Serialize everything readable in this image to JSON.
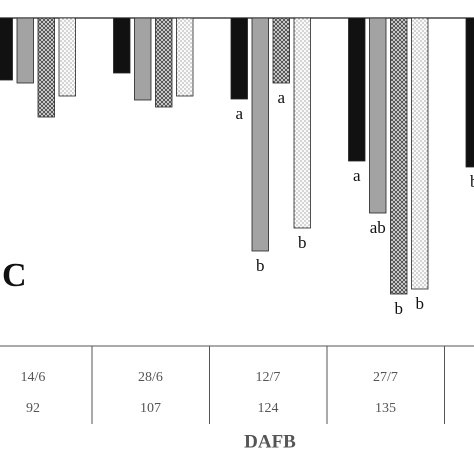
{
  "chart_data": {
    "type": "bar",
    "panel": "C",
    "x_label": "DAFB",
    "categories": [
      "14/6",
      "28/6",
      "12/7",
      "27/7",
      null
    ],
    "days": [
      92,
      107,
      124,
      135,
      null
    ],
    "ylim": [
      0,
      300
    ],
    "inverted": true,
    "series": [
      {
        "color": "#111111",
        "pattern": "solid",
        "values": [
          62,
          55,
          81,
          143,
          149
        ],
        "value_labels": [
          null,
          null,
          "a",
          "a",
          "b"
        ]
      },
      {
        "color": "#a3a3a3",
        "pattern": "solid",
        "values": [
          65,
          82,
          233,
          195,
          null
        ],
        "value_labels": [
          null,
          null,
          "b",
          "ab",
          null
        ]
      },
      {
        "color": "#bbbbbb",
        "pattern": "crosshatch",
        "values": [
          99,
          89,
          65,
          276,
          null
        ],
        "value_labels": [
          null,
          null,
          "a",
          "b",
          null
        ]
      },
      {
        "color": "#f2f2f2",
        "pattern": "dots",
        "values": [
          78,
          78,
          210,
          271,
          null
        ],
        "value_labels": [
          null,
          null,
          "b",
          "b",
          null
        ]
      }
    ]
  }
}
